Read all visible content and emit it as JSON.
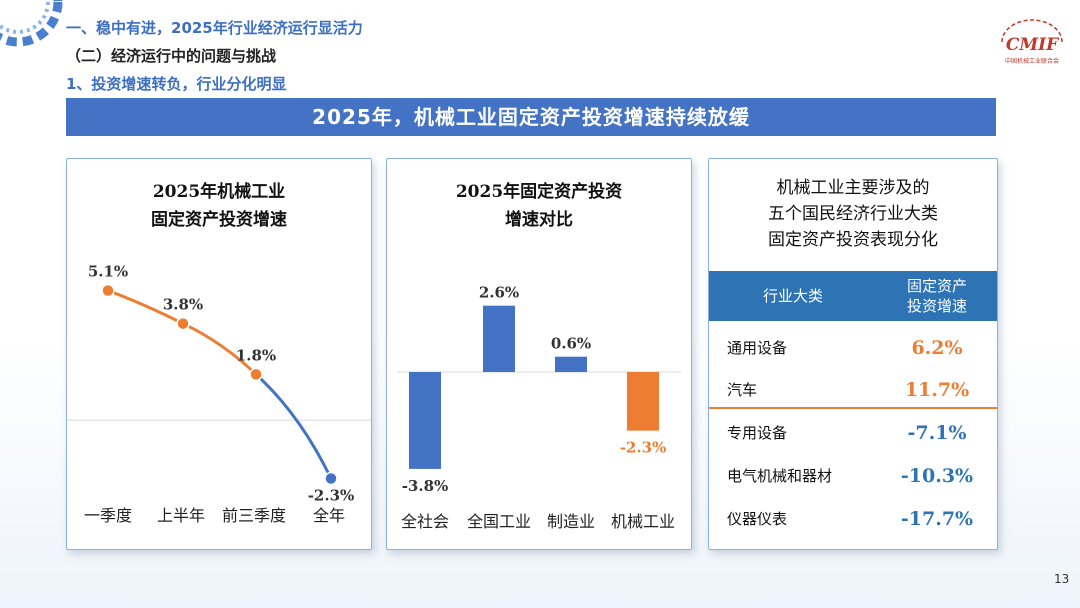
{
  "header": {
    "section": "一、稳中有进，2025年行业经济运行显活力",
    "subsection": "（二）经济运行中的问题与挑战",
    "topic": "1、投资增速转负，行业分化明显",
    "logo_text": "CMIF",
    "logo_caption": "中国机械工业联合会"
  },
  "banner": "2025年，机械工业固定资产投资增速持续放缓",
  "colors": {
    "blue": "#4472c4",
    "orange": "#ed7d31",
    "header_blue": "#2e74b5"
  },
  "chart_data": [
    {
      "type": "line",
      "title_line1": "2025年机械工业",
      "title_line2": "固定资产投资增速",
      "categories": [
        "一季度",
        "上半年",
        "前三季度",
        "全年"
      ],
      "values": [
        5.1,
        3.8,
        1.8,
        -2.3
      ],
      "labels": [
        "5.1%",
        "3.8%",
        "1.8%",
        "-2.3%"
      ],
      "point_colors": [
        "#ed7d31",
        "#ed7d31",
        "#ed7d31",
        "#4472c4"
      ],
      "ylim": [
        -3.5,
        6.5
      ]
    },
    {
      "type": "bar",
      "title_line1": "2025年固定资产投资",
      "title_line2": "增速对比",
      "categories": [
        "全社会",
        "全国工业",
        "制造业",
        "机械工业"
      ],
      "values": [
        -3.8,
        2.6,
        0.6,
        -2.3
      ],
      "labels": [
        "-3.8%",
        "2.6%",
        "0.6%",
        "-2.3%"
      ],
      "bar_colors": [
        "#4472c4",
        "#4472c4",
        "#4472c4",
        "#ed7d31"
      ],
      "ylim": [
        -5,
        4
      ]
    }
  ],
  "table": {
    "title_line1": "机械工业主要涉及的",
    "title_line2": "五个国民经济行业大类",
    "title_line3": "固定资产投资表现分化",
    "col1": "行业大类",
    "col2_line1": "固定资产",
    "col2_line2": "投资增速",
    "rows": [
      {
        "name": "通用设备",
        "value": "6.2%",
        "color": "#ed7d31"
      },
      {
        "name": "汽车",
        "value": "11.7%",
        "color": "#ed7d31"
      },
      {
        "name": "专用设备",
        "value": "-7.1%",
        "color": "#2e74b5"
      },
      {
        "name": "电气机械和器材",
        "value": "-10.3%",
        "color": "#2e74b5"
      },
      {
        "name": "仪器仪表",
        "value": "-17.7%",
        "color": "#2e74b5"
      }
    ]
  },
  "page_number": "13"
}
